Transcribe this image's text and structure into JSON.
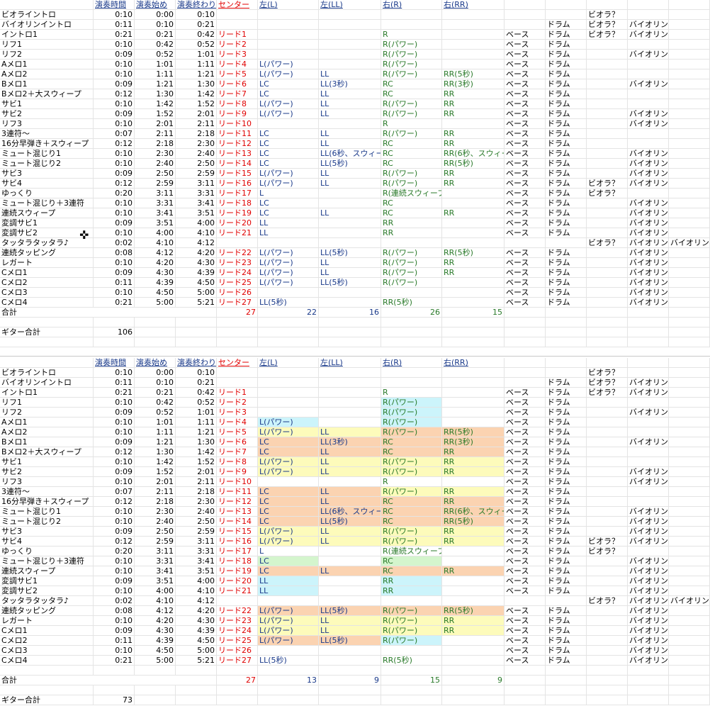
{
  "sheet": {
    "headers": [
      "",
      "演奏時間",
      "演奏始め",
      "演奏終わり",
      "センター",
      "左(L)",
      "左(LL)",
      "右(R)",
      "右(RR)",
      "",
      "",
      "",
      "",
      ""
    ],
    "rows": [
      [
        "ビオライントロ",
        "0:10",
        "0:00",
        "0:10",
        "",
        "",
        "",
        "",
        "",
        "",
        "",
        "ビオラ？",
        "",
        ""
      ],
      [
        "バイオリンイントロ",
        "0:11",
        "0:10",
        "0:21",
        "",
        "",
        "",
        "",
        "",
        "",
        "ドラム",
        "ビオラ？",
        "バイオリン",
        ""
      ],
      [
        "イントロ1",
        "0:21",
        "0:21",
        "0:42",
        "リード1",
        "",
        "",
        "R",
        "",
        "ベース",
        "ドラム",
        "ビオラ？",
        "バイオリン",
        ""
      ],
      [
        "リフ1",
        "0:10",
        "0:42",
        "0:52",
        "リード2",
        "",
        "",
        "R(パワー)",
        "",
        "ベース",
        "ドラム",
        "",
        "",
        ""
      ],
      [
        "リフ2",
        "0:09",
        "0:52",
        "1:01",
        "リード3",
        "",
        "",
        "R(パワー)",
        "",
        "ベース",
        "ドラム",
        "",
        "バイオリン",
        ""
      ],
      [
        "Aメロ1",
        "0:10",
        "1:01",
        "1:11",
        "リード4",
        "L(パワー)",
        "",
        "R(パワー)",
        "",
        "ベース",
        "ドラム",
        "",
        "",
        ""
      ],
      [
        "Aメロ2",
        "0:10",
        "1:11",
        "1:21",
        "リード5",
        "L(パワー)",
        "LL",
        "R(パワー)",
        "RR(5秒)",
        "ベース",
        "ドラム",
        "",
        "",
        ""
      ],
      [
        "Bメロ1",
        "0:09",
        "1:21",
        "1:30",
        "リード6",
        "LC",
        "LL(3秒)",
        "RC",
        "RR(3秒)",
        "ベース",
        "ドラム",
        "",
        "バイオリン",
        ""
      ],
      [
        "Bメロ2＋大スウィープ",
        "0:12",
        "1:30",
        "1:42",
        "リード7",
        "LC",
        "LL",
        "RC",
        "RR",
        "ベース",
        "ドラム",
        "",
        "",
        ""
      ],
      [
        "サビ1",
        "0:10",
        "1:42",
        "1:52",
        "リード8",
        "L(パワー)",
        "LL",
        "R(パワー)",
        "RR",
        "ベース",
        "ドラム",
        "",
        "",
        ""
      ],
      [
        "サビ2",
        "0:09",
        "1:52",
        "2:01",
        "リード9",
        "L(パワー)",
        "LL",
        "R(パワー)",
        "RR",
        "ベース",
        "ドラム",
        "",
        "バイオリン",
        ""
      ],
      [
        "リフ3",
        "0:10",
        "2:01",
        "2:11",
        "リード10",
        "",
        "",
        "R",
        "",
        "ベース",
        "ドラム",
        "",
        "バイオリン",
        ""
      ],
      [
        "3連符～",
        "0:07",
        "2:11",
        "2:18",
        "リード11",
        "LC",
        "LL",
        "R(パワー)",
        "RR",
        "ベース",
        "ドラム",
        "",
        "",
        ""
      ],
      [
        "16分早弾き＋スウィープ",
        "0:12",
        "2:18",
        "2:30",
        "リード12",
        "LC",
        "LL",
        "RC",
        "RR",
        "ベース",
        "ドラム",
        "",
        "",
        ""
      ],
      [
        "ミュート混じり1",
        "0:10",
        "2:30",
        "2:40",
        "リード13",
        "LC",
        "LL(6秒、スウィー",
        "RC",
        "RR(6秒、スウィー",
        "ベース",
        "ドラム",
        "",
        "バイオリン",
        ""
      ],
      [
        "ミュート混じり2",
        "0:10",
        "2:40",
        "2:50",
        "リード14",
        "LC",
        "LL(5秒)",
        "RC",
        "RR(5秒)",
        "ベース",
        "ドラム",
        "",
        "バイオリン",
        ""
      ],
      [
        "サビ3",
        "0:09",
        "2:50",
        "2:59",
        "リード15",
        "L(パワー)",
        "LL",
        "R(パワー)",
        "RR",
        "ベース",
        "ドラム",
        "",
        "バイオリン",
        ""
      ],
      [
        "サビ4",
        "0:12",
        "2:59",
        "3:11",
        "リード16",
        "L(パワー)",
        "LL",
        "R(パワー)",
        "RR",
        "ベース",
        "ドラム",
        "ビオラ？",
        "バイオリン",
        ""
      ],
      [
        "ゆっくり",
        "0:20",
        "3:11",
        "3:31",
        "リード17",
        "L",
        "",
        "R(連続スウィープ)",
        "",
        "ベース",
        "ドラム",
        "ビオラ？",
        "",
        ""
      ],
      [
        "ミュート混じり＋3連符",
        "0:10",
        "3:31",
        "3:41",
        "リード18",
        "LC",
        "",
        "RC",
        "",
        "ベース",
        "ドラム",
        "",
        "バイオリン",
        ""
      ],
      [
        "連続スウィープ",
        "0:10",
        "3:41",
        "3:51",
        "リード19",
        "LC",
        "LL",
        "RC",
        "RR",
        "ベース",
        "ドラム",
        "",
        "バイオリン",
        ""
      ],
      [
        "変調サビ1",
        "0:09",
        "3:51",
        "4:00",
        "リード20",
        "LL",
        "",
        "RR",
        "",
        "ベース",
        "ドラム",
        "",
        "バイオリン",
        ""
      ],
      [
        "変調サビ2",
        "0:10",
        "4:00",
        "4:10",
        "リード21",
        "LL",
        "",
        "RR",
        "",
        "ベース",
        "ドラム",
        "",
        "バイオリン",
        ""
      ],
      [
        "タッタラタッタラ♪",
        "0:02",
        "4:10",
        "4:12",
        "",
        "",
        "",
        "",
        "",
        "",
        "",
        "ビオラ？",
        "バイオリン",
        "バイオリン"
      ],
      [
        "連続タッピング",
        "0:08",
        "4:12",
        "4:20",
        "リード22",
        "L(パワー)",
        "LL(5秒)",
        "R(パワー)",
        "RR(5秒)",
        "ベース",
        "ドラム",
        "",
        "バイオリン",
        ""
      ],
      [
        "レガート",
        "0:10",
        "4:20",
        "4:30",
        "リード23",
        "L(パワー)",
        "LL",
        "R(パワー)",
        "RR",
        "ベース",
        "ドラム",
        "",
        "バイオリン",
        ""
      ],
      [
        "Cメロ1",
        "0:09",
        "4:30",
        "4:39",
        "リード24",
        "L(パワー)",
        "LL",
        "R(パワー)",
        "RR",
        "ベース",
        "ドラム",
        "",
        "バイオリン",
        ""
      ],
      [
        "Cメロ2",
        "0:11",
        "4:39",
        "4:50",
        "リード25",
        "L(パワー)",
        "LL(5秒)",
        "R(パワー)",
        "",
        "ベース",
        "ドラム",
        "",
        "バイオリン",
        ""
      ],
      [
        "Cメロ3",
        "0:10",
        "4:50",
        "5:00",
        "リード26",
        "",
        "",
        "",
        "",
        "ベース",
        "ドラム",
        "",
        "バイオリン",
        ""
      ],
      [
        "Cメロ4",
        "0:21",
        "5:00",
        "5:21",
        "リード27",
        "LL(5秒)",
        "",
        "RR(5秒)",
        "",
        "ベース",
        "ドラム",
        "",
        "バイオリン",
        ""
      ]
    ],
    "total1": {
      "label": "合計",
      "values": [
        "27",
        "22",
        "16",
        "26",
        "15"
      ]
    },
    "guitar1": {
      "label": "ギター合計",
      "value": "106"
    },
    "total2": {
      "label": "合計",
      "values": [
        "27",
        "13",
        "9",
        "15",
        "9"
      ]
    },
    "guitar2": {
      "label": "ギター合計",
      "value": "73"
    },
    "colors": {
      "cyan": "#ccf4fb",
      "orange": "#fbd3b1",
      "green": "#d4f5cd",
      "yellow": "#fdfbbb",
      "red": "#e00000",
      "blue": "#1a3a8a",
      "darkgreen": "#2a7a2a"
    }
  }
}
